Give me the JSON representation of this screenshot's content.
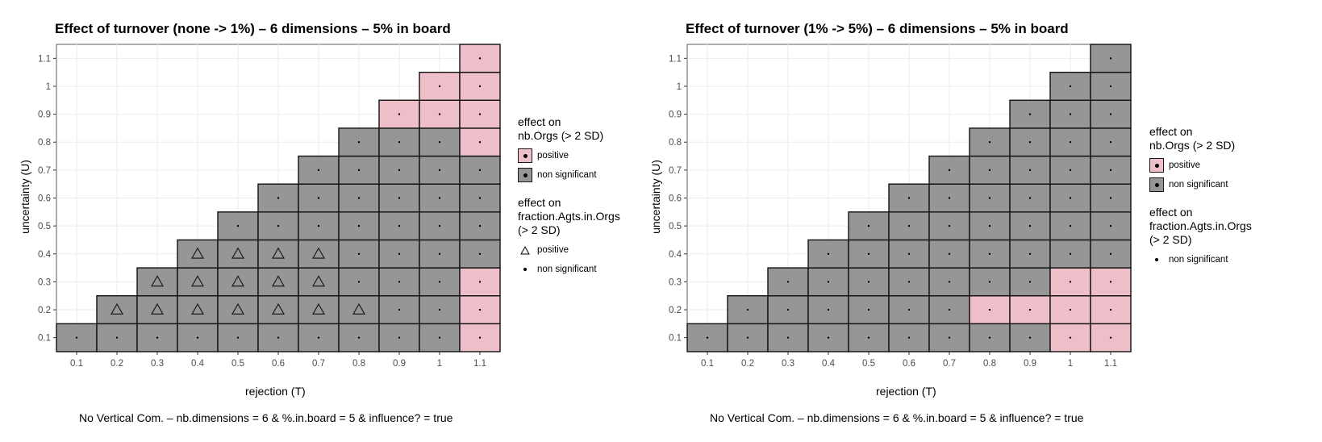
{
  "colors": {
    "positive": "#efbfc9",
    "non_significant": "#969696",
    "panel_background": "#ffffff",
    "grid": "#ebebeb"
  },
  "chart_data": [
    {
      "type": "heatmap",
      "title": "Effect of turnover (none -> 1%) – 6 dimensions – 5% in board",
      "xlabel": "rejection (T)",
      "ylabel": "uncertainty (U)",
      "caption": "No Vertical Com. – nb.dimensions = 6 & %.in.board = 5 & influence? = true",
      "x_ticks": [
        "0.1",
        "0.2",
        "0.3",
        "0.4",
        "0.5",
        "0.6",
        "0.7",
        "0.8",
        "0.9",
        "1",
        "1.1"
      ],
      "y_ticks": [
        "0.1",
        "0.2",
        "0.3",
        "0.4",
        "0.5",
        "0.6",
        "0.7",
        "0.8",
        "0.9",
        "1",
        "1.1"
      ],
      "x_values": [
        0.1,
        0.2,
        0.3,
        0.4,
        0.5,
        0.6,
        0.7,
        0.8,
        0.9,
        1,
        1.1
      ],
      "y_values": [
        0.1,
        0.2,
        0.3,
        0.4,
        0.5,
        0.6,
        0.7,
        0.8,
        0.9,
        1,
        1.1
      ],
      "xlim": [
        0.05,
        1.15
      ],
      "ylim": [
        0.05,
        1.15
      ],
      "cells_note": "cell exists where U <= T; fill = effect on nb.Orgs; shape = effect on fraction.Agts.in.Orgs",
      "nbOrgs_positive": [
        [
          1.1,
          0.1
        ],
        [
          1.1,
          0.2
        ],
        [
          1.1,
          0.3
        ],
        [
          1.1,
          0.8
        ],
        [
          1.1,
          0.9
        ],
        [
          1.1,
          1.0
        ],
        [
          1.1,
          1.1
        ],
        [
          1,
          0.9
        ],
        [
          1,
          1.0
        ],
        [
          0.9,
          0.9
        ]
      ],
      "fraction_positive": [
        [
          0.2,
          0.2
        ],
        [
          0.3,
          0.2
        ],
        [
          0.4,
          0.2
        ],
        [
          0.5,
          0.2
        ],
        [
          0.6,
          0.2
        ],
        [
          0.7,
          0.2
        ],
        [
          0.8,
          0.2
        ],
        [
          0.3,
          0.3
        ],
        [
          0.4,
          0.3
        ],
        [
          0.5,
          0.3
        ],
        [
          0.6,
          0.3
        ],
        [
          0.7,
          0.3
        ],
        [
          0.4,
          0.4
        ],
        [
          0.5,
          0.4
        ],
        [
          0.6,
          0.4
        ],
        [
          0.7,
          0.4
        ]
      ],
      "legend": {
        "fill_title": "effect on\nnb.Orgs (> 2 SD)",
        "fill_items": [
          {
            "label": "positive",
            "color": "#efbfc9"
          },
          {
            "label": "non significant",
            "color": "#969696"
          }
        ],
        "shape_title": "effect on\nfraction.Agts.in.Orgs\n(> 2 SD)",
        "shape_items": [
          {
            "label": "positive",
            "shape": "triangle"
          },
          {
            "label": "non significant",
            "shape": "dot"
          }
        ]
      },
      "legend_position": "right"
    },
    {
      "type": "heatmap",
      "title": "Effect of turnover (1% -> 5%) – 6 dimensions – 5% in board",
      "xlabel": "rejection (T)",
      "ylabel": "uncertainty (U)",
      "caption": "No Vertical Com. – nb.dimensions = 6 & %.in.board = 5 & influence? = true",
      "x_ticks": [
        "0.1",
        "0.2",
        "0.3",
        "0.4",
        "0.5",
        "0.6",
        "0.7",
        "0.8",
        "0.9",
        "1",
        "1.1"
      ],
      "y_ticks": [
        "0.1",
        "0.2",
        "0.3",
        "0.4",
        "0.5",
        "0.6",
        "0.7",
        "0.8",
        "0.9",
        "1",
        "1.1"
      ],
      "x_values": [
        0.1,
        0.2,
        0.3,
        0.4,
        0.5,
        0.6,
        0.7,
        0.8,
        0.9,
        1,
        1.1
      ],
      "y_values": [
        0.1,
        0.2,
        0.3,
        0.4,
        0.5,
        0.6,
        0.7,
        0.8,
        0.9,
        1,
        1.1
      ],
      "xlim": [
        0.05,
        1.15
      ],
      "ylim": [
        0.05,
        1.15
      ],
      "cells_note": "cell exists where U <= T; fill = effect on nb.Orgs; shape = effect on fraction.Agts.in.Orgs",
      "nbOrgs_positive": [
        [
          0.8,
          0.2
        ],
        [
          0.9,
          0.2
        ],
        [
          1,
          0.1
        ],
        [
          1,
          0.2
        ],
        [
          1,
          0.3
        ],
        [
          1.1,
          0.1
        ],
        [
          1.1,
          0.2
        ],
        [
          1.1,
          0.3
        ]
      ],
      "fraction_positive": [],
      "legend": {
        "fill_title": "effect on\nnb.Orgs (> 2 SD)",
        "fill_items": [
          {
            "label": "positive",
            "color": "#efbfc9"
          },
          {
            "label": "non significant",
            "color": "#969696"
          }
        ],
        "shape_title": "effect on\nfraction.Agts.in.Orgs\n(> 2 SD)",
        "shape_items": [
          {
            "label": "non significant",
            "shape": "dot"
          }
        ]
      },
      "legend_position": "right"
    }
  ]
}
